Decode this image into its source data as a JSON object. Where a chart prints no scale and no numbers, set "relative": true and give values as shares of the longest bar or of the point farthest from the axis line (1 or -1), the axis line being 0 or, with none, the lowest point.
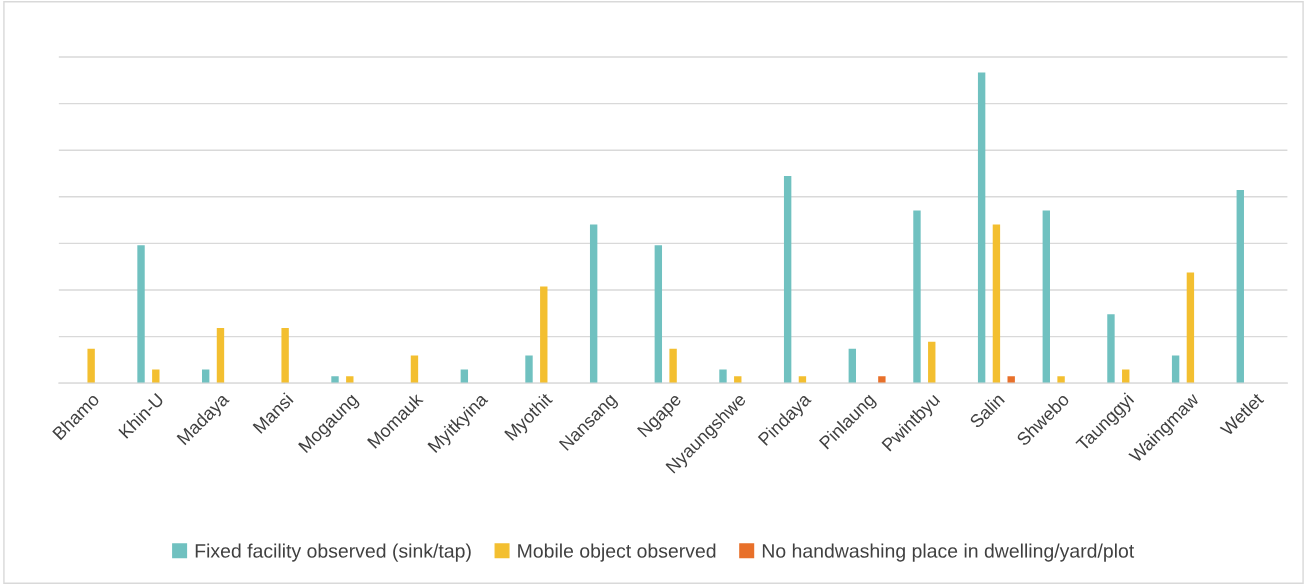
{
  "chart_data": {
    "type": "bar",
    "relative": true,
    "grid": "y",
    "legend": "bottom",
    "categories": [
      "Bhamo",
      "Khin-U",
      "Madaya",
      "Mansi",
      "Mogaung",
      "Momauk",
      "Myitkyina",
      "Myothit",
      "Nansang",
      "Ngape",
      "Nyaungshwe",
      "Pindaya",
      "Pinlaung",
      "Pwintbyu",
      "Salin",
      "Shwebo",
      "Taunggyi",
      "Waingmaw",
      "Wetlet"
    ],
    "series": [
      {
        "name": "Fixed facility observed (sink/tap)",
        "color": "#70c1c0",
        "values": [
          0,
          0.444,
          0.044,
          0,
          0.022,
          0,
          0.044,
          0.089,
          0.511,
          0.444,
          0.044,
          0.667,
          0.111,
          0.556,
          1,
          0.556,
          0.222,
          0.089,
          0.622
        ]
      },
      {
        "name": "Mobile object observed",
        "color": "#f3bf30",
        "values": [
          0.111,
          0.044,
          0.178,
          0.178,
          0.022,
          0.089,
          0,
          0.311,
          0,
          0.111,
          0.022,
          0.022,
          0,
          0.133,
          0.511,
          0.022,
          0.044,
          0.356,
          0
        ]
      },
      {
        "name": "No handwashing place in dwelling/yard/plot",
        "color": "#e8702a",
        "values": [
          0,
          0,
          0,
          0,
          0,
          0,
          0,
          0,
          0,
          0,
          0,
          0,
          0.022,
          0,
          0.022,
          0,
          0,
          0,
          0
        ]
      }
    ]
  }
}
